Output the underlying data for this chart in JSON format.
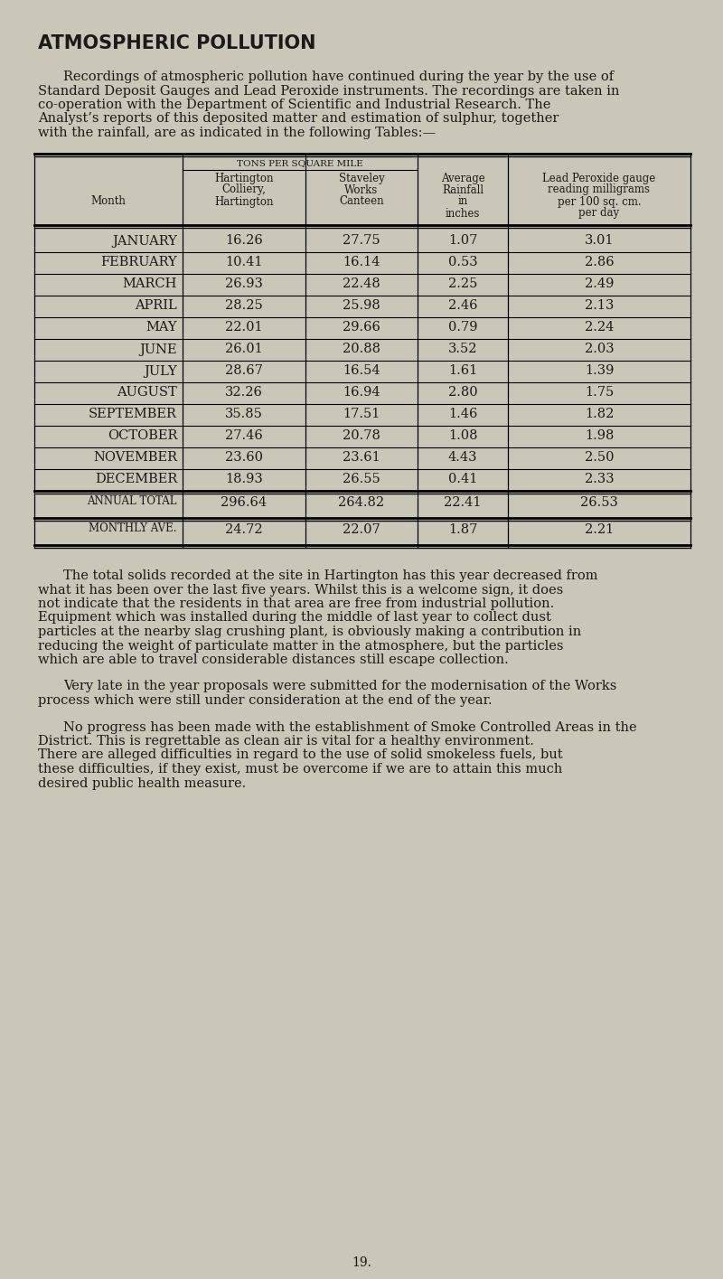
{
  "bg_color": "#cac7b8",
  "title": "ATMOSPHERIC POLLUTION",
  "intro_text": "Recordings of atmospheric pollution have continued during the year by the use of Standard Deposit Gauges and Lead Peroxide instruments. The recordings are taken in co-operation with the Department of Scientific and Industrial Research. The Analyst’s reports of this deposited matter and estimation of sulphur, together with the rainfall, are as indicated in the following Tables:—",
  "months": [
    "JANUARY",
    "FEBRUARY",
    "MARCH",
    "APRIL",
    "MAY",
    "JUNE",
    "JULY",
    "AUGUST",
    "SEPTEMBER",
    "OCTOBER",
    "NOVEMBER",
    "DECEMBER"
  ],
  "hartington": [
    16.26,
    10.41,
    26.93,
    28.25,
    22.01,
    26.01,
    28.67,
    32.26,
    35.85,
    27.46,
    23.6,
    18.93
  ],
  "staveley": [
    27.75,
    16.14,
    22.48,
    25.98,
    29.66,
    20.88,
    16.54,
    16.94,
    17.51,
    20.78,
    23.61,
    26.55
  ],
  "rainfall": [
    1.07,
    0.53,
    2.25,
    2.46,
    0.79,
    3.52,
    1.61,
    2.8,
    1.46,
    1.08,
    4.43,
    0.41
  ],
  "lead_peroxide": [
    3.01,
    2.86,
    2.49,
    2.13,
    2.24,
    2.03,
    1.39,
    1.75,
    1.82,
    1.98,
    2.5,
    2.33
  ],
  "annual_total_label": "ANNUAL TOTAL",
  "annual_total": [
    296.64,
    264.82,
    22.41,
    26.53
  ],
  "monthly_ave_label": "MONTHLY AVE.",
  "monthly_ave": [
    24.72,
    22.07,
    1.87,
    2.21
  ],
  "para1": "The total solids recorded at the site in Hartington has this year decreased from what it has been over the last five years. Whilst this is a welcome sign, it does not indicate that the residents in that area are free from industrial pollution. Equipment which was installed during the middle of last year to collect dust particles at the nearby slag crushing plant, is obviously making a contribution in reducing the weight of particulate matter in the atmosphere, but the particles which are able to travel considerable distances still escape collection.",
  "para2": "Very late in the year proposals were submitted for the modernisation of the Works process which were still under consideration at the end of the year.",
  "para3": "No progress has been made with the establishment of Smoke Controlled Areas in the District. This is regrettable as clean air is vital for a healthy environment. There are alleged difficulties in regard to the use of solid smokeless fuels, but these difficulties, if they exist, must be overcome if we are to attain this much desired public health measure.",
  "page_number": "19."
}
